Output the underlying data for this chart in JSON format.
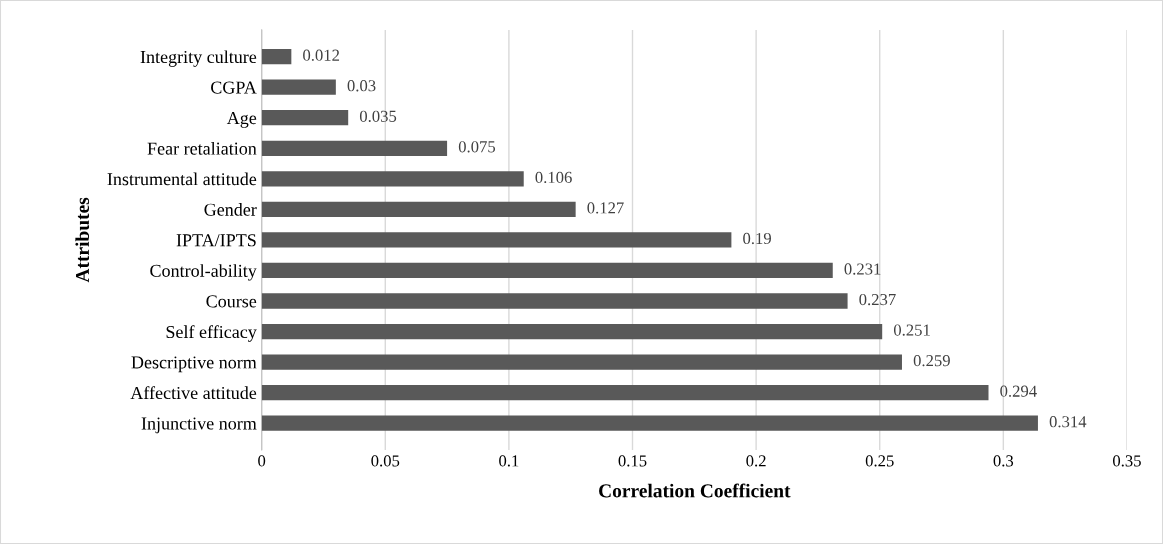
{
  "chart_data": {
    "type": "bar",
    "orientation": "horizontal",
    "xlabel": "Correlation Coefficient",
    "ylabel": "Attributes",
    "categories": [
      "Integrity culture",
      "CGPA",
      "Age",
      "Fear retaliation",
      "Instrumental attitude",
      "Gender",
      "IPTA/IPTS",
      "Control-ability",
      "Course",
      "Self efficacy",
      "Descriptive norm",
      "Affective attitude",
      "Injunctive norm"
    ],
    "values": [
      0.012,
      0.03,
      0.035,
      0.075,
      0.106,
      0.127,
      0.19,
      0.231,
      0.237,
      0.251,
      0.259,
      0.294,
      0.314
    ],
    "color": "#595959",
    "xlim": [
      0,
      0.35
    ],
    "xticks": [
      0,
      0.05,
      0.1,
      0.15,
      0.2,
      0.25,
      0.3,
      0.35
    ],
    "grid": "x",
    "data_labels": true
  }
}
